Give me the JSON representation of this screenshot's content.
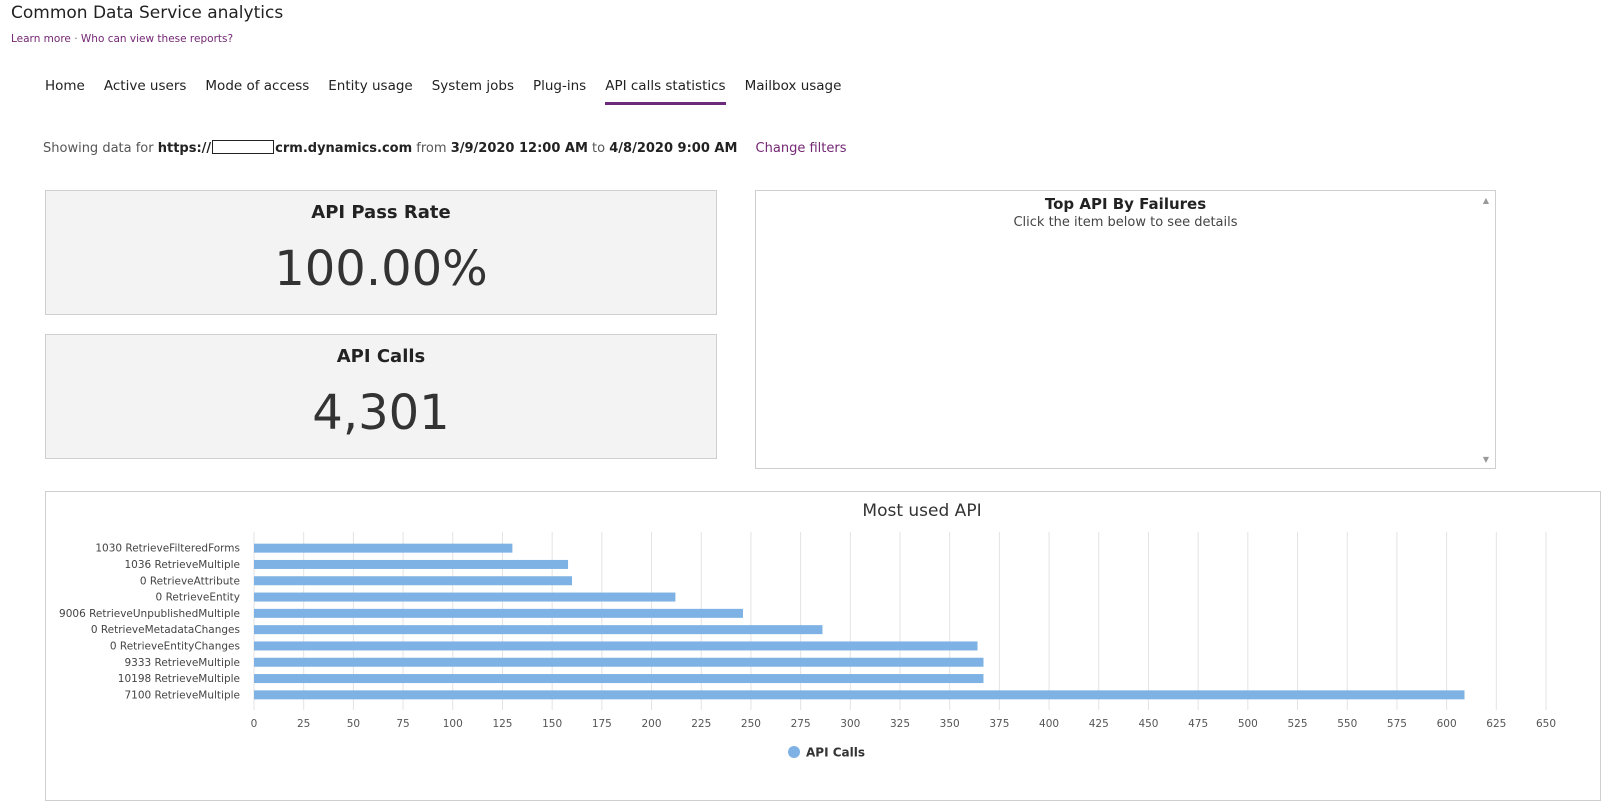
{
  "app": {
    "title": "Common Data Service analytics"
  },
  "links": {
    "learn_more": "Learn more",
    "separator": "·",
    "who_can_view": "Who can view these reports?"
  },
  "tabs": [
    {
      "label": "Home",
      "active": false
    },
    {
      "label": "Active users",
      "active": false
    },
    {
      "label": "Mode of access",
      "active": false
    },
    {
      "label": "Entity usage",
      "active": false
    },
    {
      "label": "System jobs",
      "active": false
    },
    {
      "label": "Plug-ins",
      "active": false
    },
    {
      "label": "API calls statistics",
      "active": true
    },
    {
      "label": "Mailbox usage",
      "active": false
    }
  ],
  "filters": {
    "prefix": "Showing data for",
    "url_start": "https://",
    "url_end": "crm.dynamics.com",
    "from_label": "from",
    "from": "3/9/2020 12:00 AM",
    "to_label": "to",
    "to": "4/8/2020 9:00 AM",
    "change_filters": "Change filters"
  },
  "cards": {
    "pass_rate": {
      "title": "API Pass Rate",
      "value": "100.00%"
    },
    "calls": {
      "title": "API Calls",
      "value": "4,301"
    }
  },
  "failures": {
    "title": "Top API By Failures",
    "subtitle": "Click the item below to see details"
  },
  "chart_data": {
    "type": "bar",
    "orientation": "horizontal",
    "title": "Most used API",
    "categories": [
      "1030 RetrieveFilteredForms",
      "1036 RetrieveMultiple",
      "0 RetrieveAttribute",
      "0 RetrieveEntity",
      "9006 RetrieveUnpublishedMultiple",
      "0 RetrieveMetadataChanges",
      "0 RetrieveEntityChanges",
      "9333 RetrieveMultiple",
      "10198 RetrieveMultiple",
      "7100 RetrieveMultiple"
    ],
    "series": [
      {
        "name": "API Calls",
        "values": [
          130,
          158,
          160,
          212,
          246,
          286,
          364,
          367,
          367,
          609
        ]
      }
    ],
    "xticks": [
      0,
      25,
      50,
      75,
      100,
      125,
      150,
      175,
      200,
      225,
      250,
      275,
      300,
      325,
      350,
      375,
      400,
      425,
      450,
      475,
      500,
      525,
      550,
      575,
      600,
      625,
      650
    ],
    "xlim": [
      0,
      650
    ],
    "grid": true,
    "legend": "bottom-center",
    "color": "#7eb2e4"
  }
}
